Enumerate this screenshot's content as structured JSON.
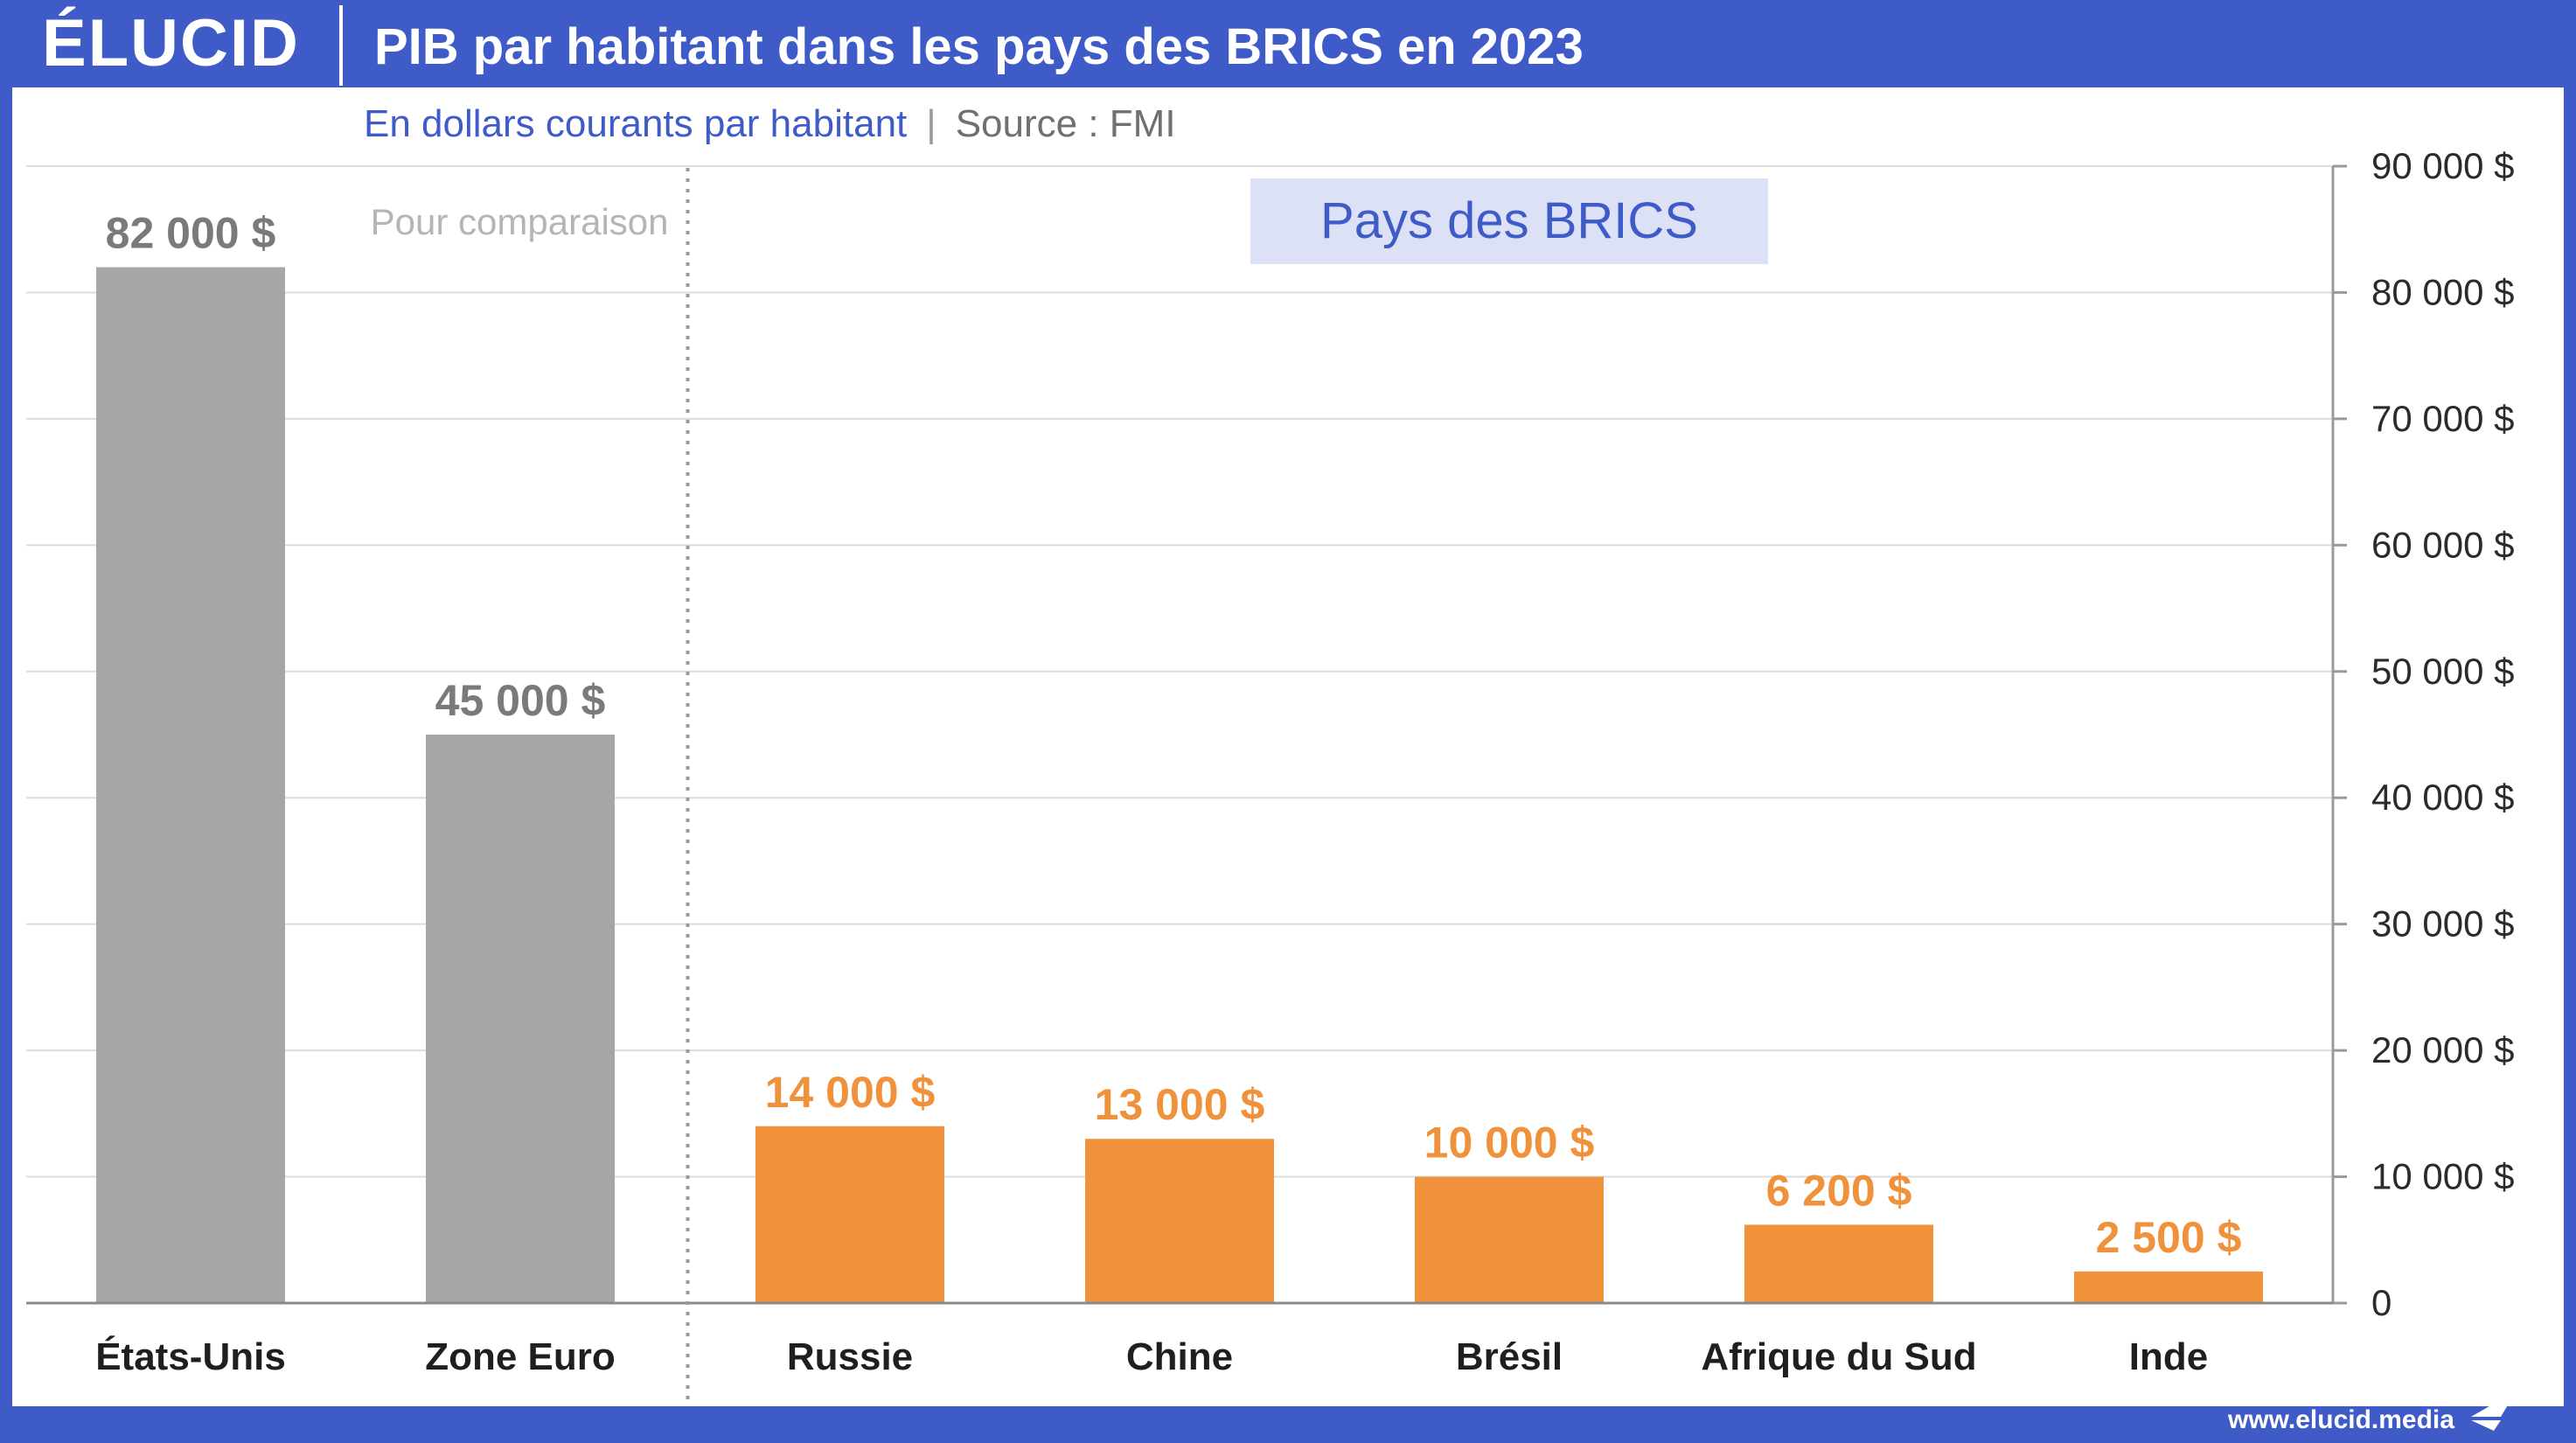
{
  "brand": {
    "logo": "ÉLUCID",
    "website": "www.elucid.media"
  },
  "title": "PIB par habitant dans les pays des BRICS en 2023",
  "subtitle": "En dollars courants par habitant",
  "separator": "|",
  "source": "Source : FMI",
  "colors": {
    "brand_blue": "#3f5bc8",
    "comparison_gray": "#a6a6a6",
    "brics_orange": "#f0923c",
    "brics_box": "#dde1f5"
  },
  "chart_data": {
    "type": "bar",
    "title": "PIB par habitant dans les pays des BRICS en 2023",
    "ylim": [
      0,
      90000
    ],
    "y_ticks": [
      {
        "value": 0,
        "label": "0"
      },
      {
        "value": 10000,
        "label": "10 000 $"
      },
      {
        "value": 20000,
        "label": "20 000 $"
      },
      {
        "value": 30000,
        "label": "30 000 $"
      },
      {
        "value": 40000,
        "label": "40 000 $"
      },
      {
        "value": 50000,
        "label": "50 000 $"
      },
      {
        "value": 60000,
        "label": "60 000 $"
      },
      {
        "value": 70000,
        "label": "70 000 $"
      },
      {
        "value": 80000,
        "label": "80 000 $"
      },
      {
        "value": 90000,
        "label": "90 000 $"
      }
    ],
    "y_axis_side": "right",
    "grid": true,
    "groups": [
      {
        "label": "Pour comparaison",
        "color": "#a6a6a6",
        "bars": [
          {
            "category": "États-Unis",
            "value": 82000,
            "label": "82 000 $"
          },
          {
            "category": "Zone Euro",
            "value": 45000,
            "label": "45 000 $"
          }
        ]
      },
      {
        "label": "Pays des BRICS",
        "color": "#f0923c",
        "bars": [
          {
            "category": "Russie",
            "value": 14000,
            "label": "14 000 $"
          },
          {
            "category": "Chine",
            "value": 13000,
            "label": "13 000 $"
          },
          {
            "category": "Brésil",
            "value": 10000,
            "label": "10 000 $"
          },
          {
            "category": "Afrique du Sud",
            "value": 6200,
            "label": "6 200 $"
          },
          {
            "category": "Inde",
            "value": 2500,
            "label": "2 500 $"
          }
        ]
      }
    ]
  }
}
